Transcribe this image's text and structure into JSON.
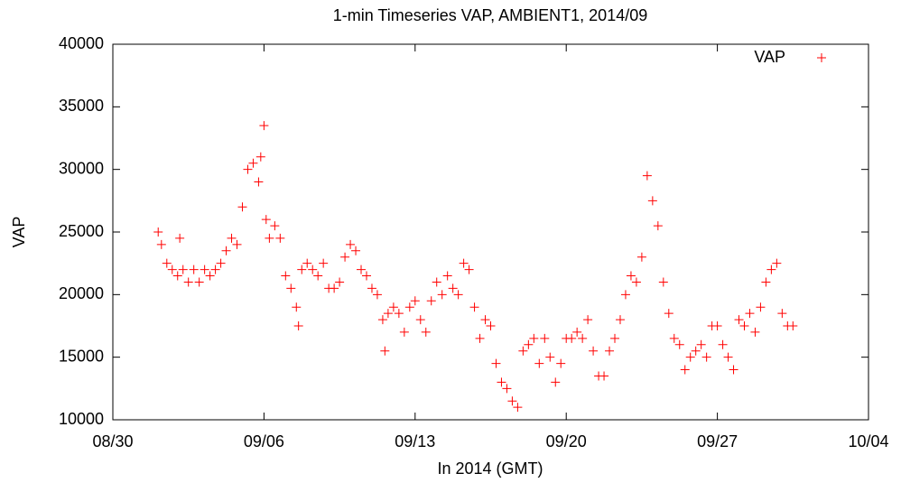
{
  "chart_data": {
    "type": "scatter",
    "title": "1-min Timeseries VAP, AMBIENT1, 2014/09",
    "x_label": "In 2014 (GMT)",
    "y_label": "VAP",
    "xlim": [
      0,
      35
    ],
    "xticks": [
      {
        "value": 0,
        "label": "08/30"
      },
      {
        "value": 7,
        "label": "09/06"
      },
      {
        "value": 14,
        "label": "09/13"
      },
      {
        "value": 21,
        "label": "09/20"
      },
      {
        "value": 28,
        "label": "09/27"
      },
      {
        "value": 35,
        "label": "10/04"
      }
    ],
    "ylim": [
      10000,
      40000
    ],
    "yticks": [
      10000,
      15000,
      20000,
      25000,
      30000,
      35000,
      40000
    ],
    "grid": false,
    "legend": "top-right",
    "series": [
      {
        "name": "VAP",
        "color": "#ff0000",
        "x": [
          2.1,
          2.25,
          2.5,
          2.75,
          3.0,
          3.1,
          3.25,
          3.5,
          3.75,
          4.0,
          4.25,
          4.5,
          4.75,
          5.0,
          5.25,
          5.5,
          5.75,
          6.0,
          6.25,
          6.5,
          6.75,
          6.85,
          7.0,
          7.1,
          7.25,
          7.5,
          7.75,
          8.0,
          8.25,
          8.5,
          8.6,
          8.75,
          9.0,
          9.25,
          9.5,
          9.75,
          10.0,
          10.25,
          10.5,
          10.75,
          11.0,
          11.25,
          11.5,
          11.75,
          12.0,
          12.25,
          12.5,
          12.6,
          12.75,
          13.0,
          13.25,
          13.5,
          13.75,
          14.0,
          14.25,
          14.5,
          14.75,
          15.0,
          15.25,
          15.5,
          15.75,
          16.0,
          16.25,
          16.5,
          16.75,
          17.0,
          17.25,
          17.5,
          17.75,
          18.0,
          18.25,
          18.5,
          18.75,
          19.0,
          19.25,
          19.5,
          19.75,
          20.0,
          20.25,
          20.5,
          20.75,
          21.0,
          21.25,
          21.5,
          21.75,
          22.0,
          22.25,
          22.5,
          22.75,
          23.0,
          23.25,
          23.5,
          23.75,
          24.0,
          24.25,
          24.5,
          24.75,
          25.0,
          25.25,
          25.5,
          25.75,
          26.0,
          26.25,
          26.5,
          26.75,
          27.0,
          27.25,
          27.5,
          27.75,
          28.0,
          28.25,
          28.5,
          28.75,
          29.0,
          29.25,
          29.5,
          29.75,
          30.0,
          30.25,
          30.5,
          30.75,
          31.0,
          31.25,
          31.5
        ],
        "values": [
          25000,
          24000,
          22500,
          22000,
          21500,
          24500,
          22000,
          21000,
          22000,
          21000,
          22000,
          21500,
          22000,
          22500,
          23500,
          24500,
          24000,
          27000,
          30000,
          30500,
          29000,
          31000,
          33500,
          26000,
          24500,
          25500,
          24500,
          21500,
          20500,
          19000,
          17500,
          22000,
          22500,
          22000,
          21500,
          22500,
          20500,
          20500,
          21000,
          23000,
          24000,
          23500,
          22000,
          21500,
          20500,
          20000,
          18000,
          15500,
          18500,
          19000,
          18500,
          17000,
          19000,
          19500,
          18000,
          17000,
          19500,
          21000,
          20000,
          21500,
          20500,
          20000,
          22500,
          22000,
          19000,
          16500,
          18000,
          17500,
          14500,
          13000,
          12500,
          11500,
          11000,
          15500,
          16000,
          16500,
          14500,
          16500,
          15000,
          13000,
          14500,
          16500,
          16500,
          17000,
          16500,
          18000,
          15500,
          13500,
          13500,
          15500,
          16500,
          18000,
          20000,
          21500,
          21000,
          23000,
          29500,
          27500,
          25500,
          21000,
          18500,
          16500,
          16000,
          14000,
          15000,
          15500,
          16000,
          15000,
          17500,
          17500,
          16000,
          15000,
          14000,
          18000,
          17500,
          18500,
          17000,
          19000,
          21000,
          22000,
          22500,
          18500,
          17500,
          17500
        ]
      }
    ]
  }
}
